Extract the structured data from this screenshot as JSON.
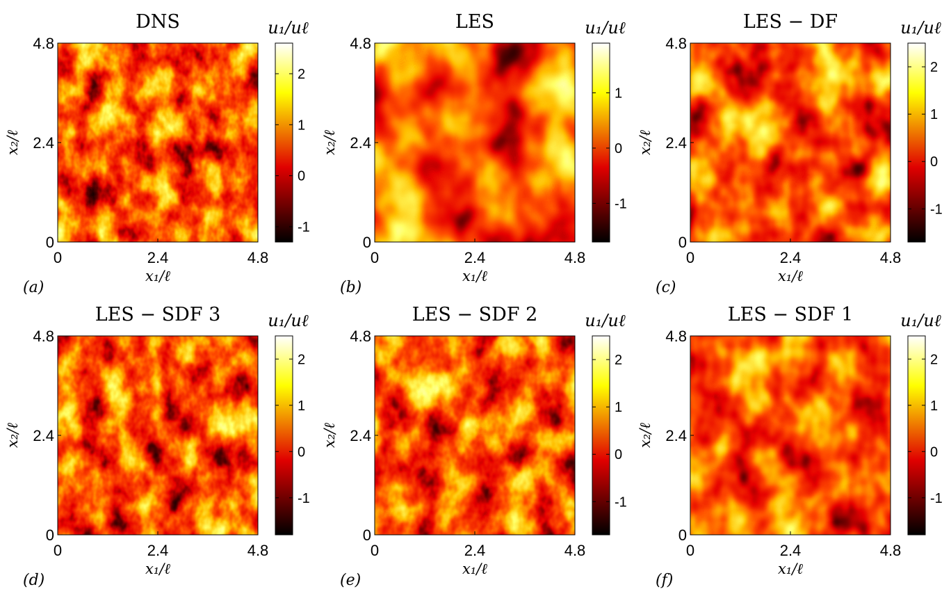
{
  "chart_data": [
    {
      "type": "heatmap",
      "title": "DNS",
      "panel_label": "(a)",
      "xlabel": "x₁/ℓ",
      "ylabel": "x₂/ℓ",
      "colorbar_label": "u₁/uℓ",
      "x_ticks": [
        "0",
        "2.4",
        "4.8"
      ],
      "y_ticks": [
        "0",
        "2.4",
        "4.8"
      ],
      "xlim": [
        0,
        4.8
      ],
      "ylim": [
        0,
        4.8
      ],
      "clim": [
        -1.3,
        2.6
      ],
      "colorbar_ticks": [
        {
          "value": -1,
          "label": "-1"
        },
        {
          "value": 0,
          "label": "0"
        },
        {
          "value": 1,
          "label": "1"
        },
        {
          "value": 2,
          "label": "2"
        }
      ],
      "colormap": "hot",
      "grid": false
    },
    {
      "type": "heatmap",
      "title": "LES",
      "panel_label": "(b)",
      "xlabel": "x₁/ℓ",
      "ylabel": "x₂/ℓ",
      "colorbar_label": "u₁/uℓ",
      "x_ticks": [
        "0",
        "2.4",
        "4.8"
      ],
      "y_ticks": [
        "0",
        "2.4",
        "4.8"
      ],
      "xlim": [
        0,
        4.8
      ],
      "ylim": [
        0,
        4.8
      ],
      "clim": [
        -1.7,
        1.9
      ],
      "colorbar_ticks": [
        {
          "value": -1,
          "label": "-1"
        },
        {
          "value": 0,
          "label": "0"
        },
        {
          "value": 1,
          "label": "1"
        }
      ],
      "colormap": "hot",
      "grid": false
    },
    {
      "type": "heatmap",
      "title": "LES − DF",
      "panel_label": "(c)",
      "xlabel": "x₁/ℓ",
      "ylabel": "x₂/ℓ",
      "colorbar_label": "u₁/uℓ",
      "x_ticks": [
        "0",
        "2.4",
        "4.8"
      ],
      "y_ticks": [
        "0",
        "2.4",
        "4.8"
      ],
      "xlim": [
        0,
        4.8
      ],
      "ylim": [
        0,
        4.8
      ],
      "clim": [
        -1.7,
        2.5
      ],
      "colorbar_ticks": [
        {
          "value": -1,
          "label": "-1"
        },
        {
          "value": 0,
          "label": "0"
        },
        {
          "value": 1,
          "label": "1"
        },
        {
          "value": 2,
          "label": "2"
        }
      ],
      "colormap": "hot",
      "grid": false
    },
    {
      "type": "heatmap",
      "title": "LES − SDF 3",
      "panel_label": "(d)",
      "xlabel": "x₁/ℓ",
      "ylabel": "x₂/ℓ",
      "colorbar_label": "u₁/uℓ",
      "x_ticks": [
        "0",
        "2.4",
        "4.8"
      ],
      "y_ticks": [
        "0",
        "2.4",
        "4.8"
      ],
      "xlim": [
        0,
        4.8
      ],
      "ylim": [
        0,
        4.8
      ],
      "clim": [
        -1.8,
        2.5
      ],
      "colorbar_ticks": [
        {
          "value": -1,
          "label": "-1"
        },
        {
          "value": 0,
          "label": "0"
        },
        {
          "value": 1,
          "label": "1"
        },
        {
          "value": 2,
          "label": "2"
        }
      ],
      "colormap": "hot",
      "grid": false
    },
    {
      "type": "heatmap",
      "title": "LES − SDF 2",
      "panel_label": "(e)",
      "xlabel": "x₁/ℓ",
      "ylabel": "x₂/ℓ",
      "colorbar_label": "u₁/uℓ",
      "x_ticks": [
        "0",
        "2.4",
        "4.8"
      ],
      "y_ticks": [
        "0",
        "2.4",
        "4.8"
      ],
      "xlim": [
        0,
        4.8
      ],
      "ylim": [
        0,
        4.8
      ],
      "clim": [
        -1.7,
        2.5
      ],
      "colorbar_ticks": [
        {
          "value": -1,
          "label": "-1"
        },
        {
          "value": 0,
          "label": "0"
        },
        {
          "value": 1,
          "label": "1"
        },
        {
          "value": 2,
          "label": "2"
        }
      ],
      "colormap": "hot",
      "grid": false
    },
    {
      "type": "heatmap",
      "title": "LES − SDF 1",
      "panel_label": "(f)",
      "xlabel": "x₁/ℓ",
      "ylabel": "x₂/ℓ",
      "colorbar_label": "u₁/uℓ",
      "x_ticks": [
        "0",
        "2.4",
        "4.8"
      ],
      "y_ticks": [
        "0",
        "2.4",
        "4.8"
      ],
      "xlim": [
        0,
        4.8
      ],
      "ylim": [
        0,
        4.8
      ],
      "clim": [
        -1.8,
        2.5
      ],
      "colorbar_ticks": [
        {
          "value": -1,
          "label": "-1"
        },
        {
          "value": 0,
          "label": "0"
        },
        {
          "value": 1,
          "label": "1"
        },
        {
          "value": 2,
          "label": "2"
        }
      ],
      "colormap": "hot",
      "grid": false
    }
  ]
}
